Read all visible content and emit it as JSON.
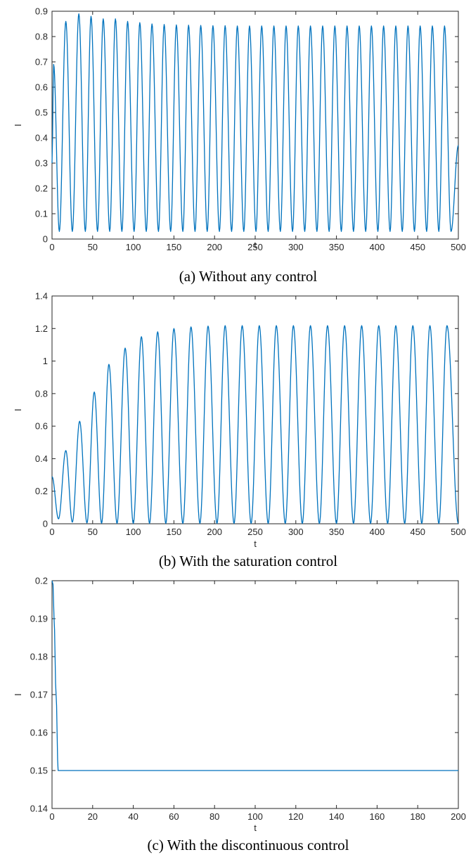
{
  "colors": {
    "series": "#0072bd",
    "axes": "#262626",
    "background": "#ffffff"
  },
  "chart_data": [
    {
      "id": "a",
      "type": "line",
      "caption": "(a) Without any control",
      "xlabel": "t",
      "ylabel": "I",
      "xlim": [
        0,
        500
      ],
      "ylim": [
        0,
        0.9
      ],
      "xticks": [
        "0",
        "50",
        "100",
        "150",
        "200",
        "250",
        "300",
        "350",
        "400",
        "450",
        "500"
      ],
      "yticks": [
        "0",
        "0.1",
        "0.2",
        "0.3",
        "0.4",
        "0.5",
        "0.6",
        "0.7",
        "0.8",
        "0.9"
      ],
      "series": [
        {
          "color": "#0072bd",
          "x": [
            0,
            2,
            9,
            17,
            25,
            33,
            41,
            48,
            56,
            63,
            71,
            78,
            86,
            93,
            101,
            108,
            116,
            123,
            131,
            138,
            146,
            153,
            161,
            168,
            176,
            183,
            191,
            198,
            206,
            213,
            221,
            228,
            236,
            243,
            251,
            258,
            266,
            273,
            281,
            288,
            296,
            303,
            311,
            318,
            326,
            333,
            341,
            348,
            356,
            363,
            371,
            378,
            386,
            393,
            401,
            408,
            416,
            423,
            431,
            438,
            446,
            453,
            461,
            468,
            476,
            483,
            491,
            500
          ],
          "y": [
            0.3,
            0.69,
            0.03,
            0.86,
            0.03,
            0.89,
            0.03,
            0.88,
            0.03,
            0.87,
            0.03,
            0.87,
            0.03,
            0.86,
            0.03,
            0.855,
            0.03,
            0.85,
            0.03,
            0.848,
            0.03,
            0.846,
            0.03,
            0.845,
            0.03,
            0.844,
            0.03,
            0.843,
            0.03,
            0.843,
            0.03,
            0.842,
            0.03,
            0.842,
            0.03,
            0.842,
            0.03,
            0.842,
            0.03,
            0.842,
            0.03,
            0.842,
            0.03,
            0.842,
            0.03,
            0.842,
            0.03,
            0.842,
            0.03,
            0.842,
            0.03,
            0.842,
            0.03,
            0.842,
            0.03,
            0.842,
            0.03,
            0.842,
            0.03,
            0.842,
            0.03,
            0.842,
            0.03,
            0.842,
            0.03,
            0.842,
            0.03,
            0.37
          ]
        }
      ]
    },
    {
      "id": "b",
      "type": "line",
      "caption": "(b) With the saturation control",
      "xlabel": "t",
      "ylabel": "I",
      "xlim": [
        0,
        500
      ],
      "ylim": [
        0,
        1.4
      ],
      "xticks": [
        "0",
        "50",
        "100",
        "150",
        "200",
        "250",
        "300",
        "350",
        "400",
        "450",
        "500"
      ],
      "yticks": [
        "0",
        "0.2",
        "0.4",
        "0.6",
        "0.8",
        "1",
        "1.2",
        "1.4"
      ],
      "series": [
        {
          "color": "#0072bd",
          "x": [
            0,
            8,
            17,
            25,
            34,
            43,
            52,
            61,
            70,
            80,
            90,
            100,
            110,
            120,
            130,
            140,
            150,
            161,
            171,
            182,
            192,
            203,
            213,
            224,
            234,
            245,
            255,
            266,
            276,
            287,
            297,
            308,
            318,
            329,
            339,
            350,
            360,
            371,
            381,
            392,
            402,
            413,
            423,
            434,
            444,
            455,
            465,
            476,
            486,
            500
          ],
          "y": [
            0.29,
            0.03,
            0.45,
            0.01,
            0.63,
            0.005,
            0.81,
            0.003,
            0.98,
            0.002,
            1.08,
            0.002,
            1.15,
            0.002,
            1.18,
            0.002,
            1.2,
            0.002,
            1.21,
            0.002,
            1.215,
            0.002,
            1.218,
            0.002,
            1.218,
            0.002,
            1.218,
            0.002,
            1.218,
            0.002,
            1.218,
            0.002,
            1.218,
            0.002,
            1.218,
            0.002,
            1.218,
            0.002,
            1.218,
            0.002,
            1.218,
            0.002,
            1.218,
            0.002,
            1.218,
            0.002,
            1.218,
            0.002,
            1.218,
            0.002
          ]
        }
      ]
    },
    {
      "id": "c",
      "type": "line",
      "caption": "(c) With the discontinuous control",
      "xlabel": "t",
      "ylabel": "I",
      "xlim": [
        0,
        200
      ],
      "ylim": [
        0.14,
        0.2
      ],
      "xticks": [
        "0",
        "20",
        "40",
        "60",
        "80",
        "100",
        "120",
        "140",
        "160",
        "180",
        "200"
      ],
      "yticks": [
        "0.14",
        "0.15",
        "0.16",
        "0.17",
        "0.18",
        "0.19",
        "0.2"
      ],
      "series": [
        {
          "color": "#0072bd",
          "x": [
            0,
            0.5,
            1,
            2,
            3,
            5,
            200
          ],
          "y": [
            0.2,
            0.199,
            0.19,
            0.17,
            0.15,
            0.15,
            0.15
          ]
        }
      ]
    }
  ]
}
